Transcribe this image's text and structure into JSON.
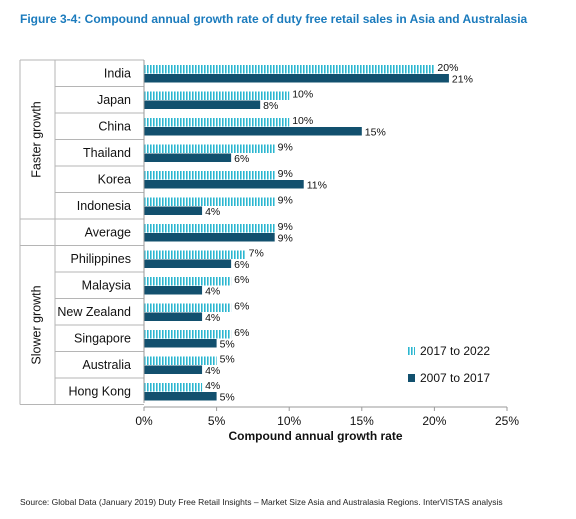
{
  "figure_title": "Figure 3-4: Compound annual growth rate of duty free retail sales in Asia and Australasia",
  "source_note": "Source: Global Data (January 2019) Duty Free Retail Insights – Market Size Asia and Australasia Regions. InterVISTAS analysis",
  "colors": {
    "striped_series": "#2bb6d0",
    "solid_series": "#12506e",
    "axis": "#9a9a9a"
  },
  "chart_data": {
    "type": "bar",
    "orientation": "horizontal",
    "categories": [
      "India",
      "Japan",
      "China",
      "Thailand",
      "Korea",
      "Indonesia",
      "Average",
      "Philippines",
      "Malaysia",
      "New Zealand",
      "Singapore",
      "Australia",
      "Hong Kong"
    ],
    "series": [
      {
        "name": "2017 to 2022",
        "values": [
          20,
          10,
          10,
          9,
          9,
          9,
          9,
          7,
          6,
          6,
          6,
          5,
          4
        ],
        "labels": [
          "20%",
          "10%",
          "10%",
          "9%",
          "9%",
          "9%",
          "9%",
          "7%",
          "6%",
          "6%",
          "6%",
          "5%",
          "4%"
        ]
      },
      {
        "name": "2007 to 2017",
        "values": [
          21,
          8,
          15,
          6,
          11,
          4,
          9,
          6,
          4,
          4,
          5,
          4,
          5
        ],
        "labels": [
          "21%",
          "8%",
          "15%",
          "6%",
          "11%",
          "4%",
          "9%",
          "6%",
          "4%",
          "4%",
          "5%",
          "4%",
          "5%"
        ]
      }
    ],
    "groups": [
      {
        "label": "Faster growth",
        "from": 0,
        "to": 5
      },
      {
        "label": "Slower growth",
        "from": 7,
        "to": 12
      }
    ],
    "xlabel": "Compound annual growth rate",
    "xlim": [
      0,
      25
    ],
    "xticks": [
      0,
      5,
      10,
      15,
      20,
      25
    ],
    "xtick_labels": [
      "0%",
      "5%",
      "10%",
      "15%",
      "20%",
      "25%"
    ],
    "legend_position": "bottom-right",
    "grid": false
  }
}
